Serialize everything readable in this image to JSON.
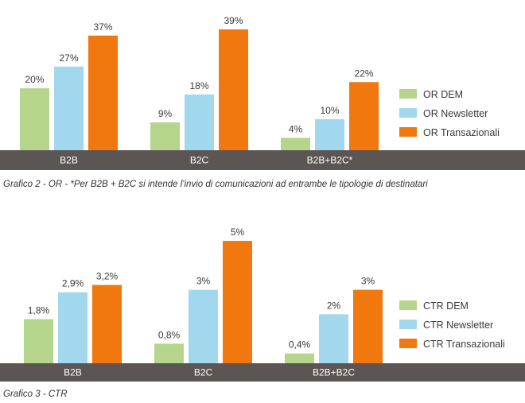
{
  "chart_data": [
    {
      "type": "bar",
      "caption": "Grafico 2  - OR - *Per B2B + B2C si intende l'invio di comunicazioni ad entrambe le tipologie di destinatari",
      "categories": [
        "B2B",
        "B2C",
        "B2B+B2C*"
      ],
      "series": [
        {
          "name": "OR DEM",
          "values": [
            20,
            9,
            4
          ],
          "labels": [
            "20%",
            "9%",
            "4%"
          ],
          "color": "#b5d48c"
        },
        {
          "name": "OR Newsletter",
          "values": [
            27,
            18,
            10
          ],
          "labels": [
            "27%",
            "18%",
            "10%"
          ],
          "color": "#a2d8ee"
        },
        {
          "name": "OR Transazionali",
          "values": [
            37,
            39,
            22
          ],
          "labels": [
            "37%",
            "39%",
            "22%"
          ],
          "color": "#f0780e"
        }
      ],
      "ylim": [
        0,
        39
      ],
      "legend": "right",
      "grid": false,
      "baseline_color": "#5b5553"
    },
    {
      "type": "bar",
      "caption": "Grafico 3 - CTR",
      "categories": [
        "B2B",
        "B2C",
        "B2B+B2C"
      ],
      "series": [
        {
          "name": "CTR DEM",
          "values": [
            1.8,
            0.8,
            0.4
          ],
          "labels": [
            "1,8%",
            "0,8%",
            "0,4%"
          ],
          "color": "#b5d48c"
        },
        {
          "name": "CTR Newsletter",
          "values": [
            2.9,
            3,
            2
          ],
          "labels": [
            "2,9%",
            "3%",
            "2%"
          ],
          "color": "#a2d8ee"
        },
        {
          "name": "CTR Transazionali",
          "values": [
            3.2,
            5,
            3
          ],
          "labels": [
            "3,2%",
            "5%",
            "3%"
          ],
          "color": "#f0780e"
        }
      ],
      "ylim": [
        0,
        5
      ],
      "legend": "right",
      "grid": false,
      "baseline_color": "#5b5553"
    }
  ]
}
